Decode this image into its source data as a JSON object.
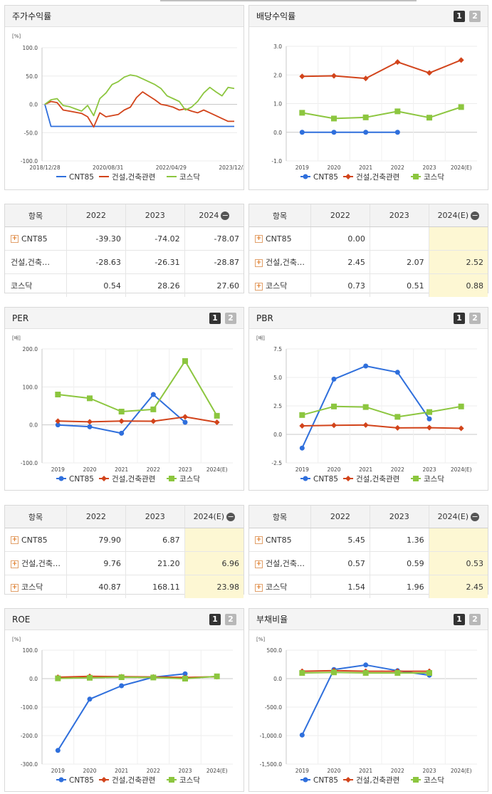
{
  "colors": {
    "cnt": "#2f6fdc",
    "con": "#d2441b",
    "kos": "#8cc63f"
  },
  "charts": [
    {
      "id": "stock",
      "title": "주가수익률",
      "buttons": [],
      "unit": "[%]",
      "xtype": "date",
      "yticks": [
        "100.0",
        "50.0",
        "0.0",
        "-50.0",
        "-100.0"
      ],
      "ymin": -100,
      "ymax": 100,
      "xticks": [
        "2018/12/28",
        "2020/08/31",
        "2022/04/29",
        "2023/12/28"
      ],
      "legend": [
        "CNT85",
        "건설,건축관련",
        "코스닥"
      ],
      "chart_data": {
        "type": "line",
        "x": [
          "2018/12/28",
          "2019/01/31",
          "2019/03/29",
          "2019/05/31",
          "2019/07/31",
          "2019/09/30",
          "2019/11/29",
          "2020/01/31",
          "2020/03/31",
          "2020/05/29",
          "2020/07/31",
          "2020/09/29",
          "2020/11/30",
          "2021/01/29",
          "2021/03/31",
          "2021/05/31",
          "2021/07/30",
          "2021/09/30",
          "2021/11/30",
          "2022/01/28",
          "2022/03/31",
          "2022/05/31",
          "2022/07/29",
          "2022/09/30",
          "2022/11/30",
          "2023/01/31",
          "2023/03/31",
          "2023/05/31",
          "2023/07/31",
          "2023/09/27",
          "2023/11/30",
          "2023/12/28"
        ],
        "series": [
          {
            "name": "CNT85",
            "values": [
              0,
              -39,
              -39,
              -39,
              -39,
              -39,
              -39,
              -39,
              -39,
              -39,
              -39,
              -39,
              -39,
              -39,
              -39,
              -39,
              -39,
              -39,
              -39,
              -39,
              -39,
              -39,
              -39,
              -39,
              -39,
              -39,
              -39,
              -39,
              -39,
              -39,
              -39,
              -39
            ]
          },
          {
            "name": "건설,건축관련",
            "values": [
              0,
              5,
              3,
              -10,
              -12,
              -14,
              -16,
              -22,
              -40,
              -15,
              -22,
              -20,
              -18,
              -10,
              -5,
              12,
              22,
              15,
              8,
              0,
              -2,
              -5,
              -10,
              -8,
              -12,
              -15,
              -10,
              -15,
              -20,
              -25,
              -30,
              -30
            ]
          },
          {
            "name": "코스닥",
            "values": [
              0,
              8,
              10,
              -2,
              -4,
              -8,
              -12,
              -2,
              -20,
              10,
              20,
              35,
              40,
              48,
              52,
              50,
              45,
              40,
              35,
              28,
              15,
              10,
              5,
              -10,
              -5,
              5,
              20,
              30,
              22,
              15,
              30,
              28
            ]
          }
        ],
        "ylabel": "[%]",
        "ylim": [
          -100,
          100
        ]
      }
    },
    {
      "id": "dividend",
      "title": "배당수익률",
      "buttons": [
        "1",
        "2"
      ],
      "unit": "",
      "xtype": "cat",
      "yticks": [
        "3.0",
        "2.0",
        "1.0",
        "0.0",
        "-1.0"
      ],
      "ymin": -1,
      "ymax": 3,
      "xticks": [
        "2019",
        "2020",
        "2021",
        "2022",
        "2023",
        "2024(E)"
      ],
      "legend": [
        "CNT85",
        "건설,건축관련",
        "코스닥"
      ],
      "chart_data": {
        "type": "line",
        "categories": [
          "2019",
          "2020",
          "2021",
          "2022",
          "2023",
          "2024(E)"
        ],
        "series": [
          {
            "name": "CNT85",
            "values": [
              0.0,
              0.0,
              0.0,
              0.0,
              null,
              null
            ]
          },
          {
            "name": "건설,건축관련",
            "values": [
              1.95,
              1.97,
              1.88,
              2.45,
              2.07,
              2.52
            ]
          },
          {
            "name": "코스닥",
            "values": [
              0.68,
              0.48,
              0.52,
              0.73,
              0.51,
              0.88
            ]
          }
        ],
        "ylim": [
          -1,
          3
        ]
      }
    },
    {
      "id": "per",
      "title": "PER",
      "buttons": [
        "1",
        "2"
      ],
      "unit": "[배]",
      "xtype": "cat",
      "yticks": [
        "200.0",
        "100.0",
        "0.0",
        "-100.0"
      ],
      "ymin": -100,
      "ymax": 200,
      "xticks": [
        "2019",
        "2020",
        "2021",
        "2022",
        "2023",
        "2024(E)"
      ],
      "legend": [
        "CNT85",
        "건설,건축관련",
        "코스닥"
      ],
      "chart_data": {
        "type": "line",
        "categories": [
          "2019",
          "2020",
          "2021",
          "2022",
          "2023",
          "2024(E)"
        ],
        "series": [
          {
            "name": "CNT85",
            "values": [
              0,
              -5,
              -22,
              79.9,
              6.87,
              null
            ]
          },
          {
            "name": "건설,건축관련",
            "values": [
              10,
              8,
              10,
              9.76,
              21.2,
              6.96
            ]
          },
          {
            "name": "코스닥",
            "values": [
              80,
              70,
              35,
              40.87,
              168.11,
              23.98
            ]
          }
        ],
        "ylabel": "[배]",
        "ylim": [
          -100,
          200
        ]
      }
    },
    {
      "id": "pbr",
      "title": "PBR",
      "buttons": [
        "1",
        "2"
      ],
      "unit": "[배]",
      "xtype": "cat",
      "yticks": [
        "7.5",
        "5.0",
        "2.5",
        "0.0",
        "-2.5"
      ],
      "ymin": -2.5,
      "ymax": 7.5,
      "xticks": [
        "2019",
        "2020",
        "2021",
        "2022",
        "2023",
        "2024(E)"
      ],
      "legend": [
        "CNT85",
        "건설,건축관련",
        "코스닥"
      ],
      "chart_data": {
        "type": "line",
        "categories": [
          "2019",
          "2020",
          "2021",
          "2022",
          "2023",
          "2024(E)"
        ],
        "series": [
          {
            "name": "CNT85",
            "values": [
              -1.2,
              4.85,
              6.0,
              5.45,
              1.36,
              null
            ]
          },
          {
            "name": "건설,건축관련",
            "values": [
              0.75,
              0.8,
              0.82,
              0.57,
              0.59,
              0.53
            ]
          },
          {
            "name": "코스닥",
            "values": [
              1.7,
              2.45,
              2.4,
              1.54,
              1.96,
              2.45
            ]
          }
        ],
        "ylabel": "[배]",
        "ylim": [
          -2.5,
          7.5
        ]
      }
    },
    {
      "id": "roe",
      "title": "ROE",
      "buttons": [
        "1",
        "2"
      ],
      "unit": "[%]",
      "xtype": "cat",
      "yticks": [
        "100.0",
        "0.0",
        "-100.0",
        "-200.0",
        "-300.0"
      ],
      "ymin": -300,
      "ymax": 100,
      "xticks": [
        "2019",
        "2020",
        "2021",
        "2022",
        "2023",
        "2024(E)"
      ],
      "legend": [
        "CNT85",
        "건설,건축관련",
        "코스닥"
      ],
      "chart_data": {
        "type": "line",
        "categories": [
          "2019",
          "2020",
          "2021",
          "2022",
          "2023",
          "2024(E)"
        ],
        "series": [
          {
            "name": "CNT85",
            "values": [
              -252,
              -72,
              -25,
              5,
              17,
              null
            ]
          },
          {
            "name": "건설,건축관련",
            "values": [
              5,
              8,
              7,
              6,
              4,
              7
            ]
          },
          {
            "name": "코스닥",
            "values": [
              1,
              3,
              5,
              4,
              0,
              8
            ]
          }
        ],
        "ylabel": "[%]",
        "ylim": [
          -300,
          100
        ]
      }
    },
    {
      "id": "debt",
      "title": "부채비율",
      "buttons": [
        "1",
        "2"
      ],
      "unit": "[%]",
      "xtype": "cat",
      "yticks": [
        "500.0",
        "0.0",
        "-500.0",
        "-1,000.0",
        "-1,500.0"
      ],
      "ymin": -1500,
      "ymax": 500,
      "xticks": [
        "2019",
        "2020",
        "2021",
        "2022",
        "2023",
        "2024(E)"
      ],
      "legend": [
        "CNT85",
        "건설,건축관련",
        "코스닥"
      ],
      "chart_data": {
        "type": "line",
        "categories": [
          "2019",
          "2020",
          "2021",
          "2022",
          "2023",
          "2024(E)"
        ],
        "series": [
          {
            "name": "CNT85",
            "values": [
              -990,
              160,
              240,
              140,
              60,
              null
            ]
          },
          {
            "name": "건설,건축관련",
            "values": [
              130,
              140,
              130,
              130,
              130,
              null
            ]
          },
          {
            "name": "코스닥",
            "values": [
              100,
              110,
              100,
              100,
              100,
              null
            ]
          }
        ],
        "ylabel": "[%]",
        "ylim": [
          -1500,
          500
        ]
      }
    }
  ],
  "tables": [
    {
      "id": "stock-table",
      "headers": [
        "항목",
        "2022",
        "2023",
        "2024"
      ],
      "header_minus": true,
      "hlcol": false,
      "rows": [
        {
          "label": "CNT85",
          "plus": true,
          "values": [
            "-39.30",
            "-74.02",
            "-78.07"
          ]
        },
        {
          "label": "건설,건축…",
          "plus": false,
          "values": [
            "-28.63",
            "-26.31",
            "-28.87"
          ]
        },
        {
          "label": "코스닥",
          "plus": false,
          "values": [
            "0.54",
            "28.26",
            "27.60"
          ]
        }
      ]
    },
    {
      "id": "dividend-table",
      "headers": [
        "항목",
        "2022",
        "2023",
        "2024(E)"
      ],
      "header_minus": true,
      "hlcol": true,
      "rows": [
        {
          "label": "CNT85",
          "plus": true,
          "values": [
            "0.00",
            "",
            ""
          ]
        },
        {
          "label": "건설,건축…",
          "plus": true,
          "values": [
            "2.45",
            "2.07",
            "2.52"
          ]
        },
        {
          "label": "코스닥",
          "plus": true,
          "values": [
            "0.73",
            "0.51",
            "0.88"
          ]
        }
      ]
    },
    {
      "id": "per-table",
      "headers": [
        "항목",
        "2022",
        "2023",
        "2024(E)"
      ],
      "header_minus": true,
      "hlcol": true,
      "rows": [
        {
          "label": "CNT85",
          "plus": true,
          "values": [
            "79.90",
            "6.87",
            ""
          ]
        },
        {
          "label": "건설,건축…",
          "plus": true,
          "values": [
            "9.76",
            "21.20",
            "6.96"
          ]
        },
        {
          "label": "코스닥",
          "plus": true,
          "values": [
            "40.87",
            "168.11",
            "23.98"
          ]
        }
      ]
    },
    {
      "id": "pbr-table",
      "headers": [
        "항목",
        "2022",
        "2023",
        "2024(E)"
      ],
      "header_minus": true,
      "hlcol": true,
      "rows": [
        {
          "label": "CNT85",
          "plus": true,
          "values": [
            "5.45",
            "1.36",
            ""
          ]
        },
        {
          "label": "건설,건축…",
          "plus": true,
          "values": [
            "0.57",
            "0.59",
            "0.53"
          ]
        },
        {
          "label": "코스닥",
          "plus": true,
          "values": [
            "1.54",
            "1.96",
            "2.45"
          ]
        }
      ]
    }
  ]
}
